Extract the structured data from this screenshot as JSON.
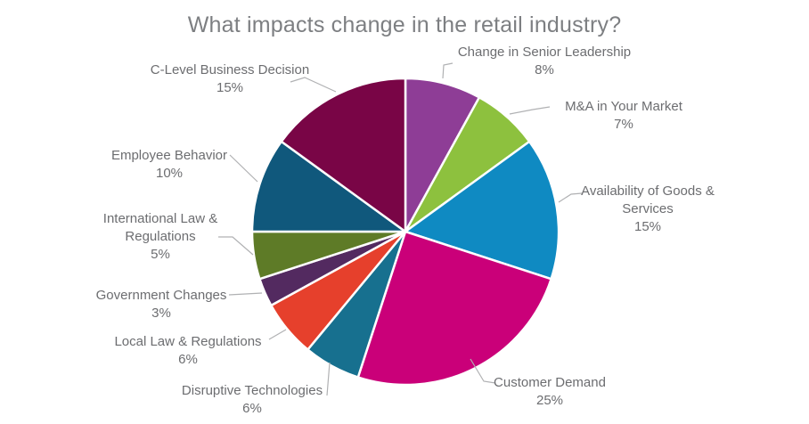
{
  "title": "What impacts change in the retail industry?",
  "chart_data": {
    "type": "pie",
    "title": "What impacts change in the retail industry?",
    "unit": "%",
    "total": 100,
    "start_angle_deg": 0,
    "direction": "clockwise",
    "legend_position": "none",
    "label_style": "outside labels with gray leader lines, category name above percent value",
    "slices": [
      {
        "label": "Change in Senior Leadership",
        "value": 8,
        "color": "#8e3d96"
      },
      {
        "label": "M&A in Your Market",
        "value": 7,
        "color": "#8dc13e"
      },
      {
        "label": "Availability of Goods & Services",
        "value": 15,
        "color": "#0f8ac2"
      },
      {
        "label": "Customer Demand",
        "value": 25,
        "color": "#ca0079"
      },
      {
        "label": "Disruptive Technologies",
        "value": 6,
        "color": "#17708f"
      },
      {
        "label": "Local Law & Regulations",
        "value": 6,
        "color": "#e6402c"
      },
      {
        "label": "Government Changes",
        "value": 3,
        "color": "#532a60"
      },
      {
        "label": "International Law & Regulations",
        "value": 5,
        "color": "#5e7b27"
      },
      {
        "label": "Employee Behavior",
        "value": 10,
        "color": "#10587c"
      },
      {
        "label": "C-Level Business Decision",
        "value": 15,
        "color": "#790546"
      }
    ]
  },
  "colors": {
    "background": "#ffffff",
    "title_text": "#7d7f82",
    "label_text": "#6c6d70",
    "leader_line": "#b0b1b3",
    "slice_border": "#ffffff"
  }
}
